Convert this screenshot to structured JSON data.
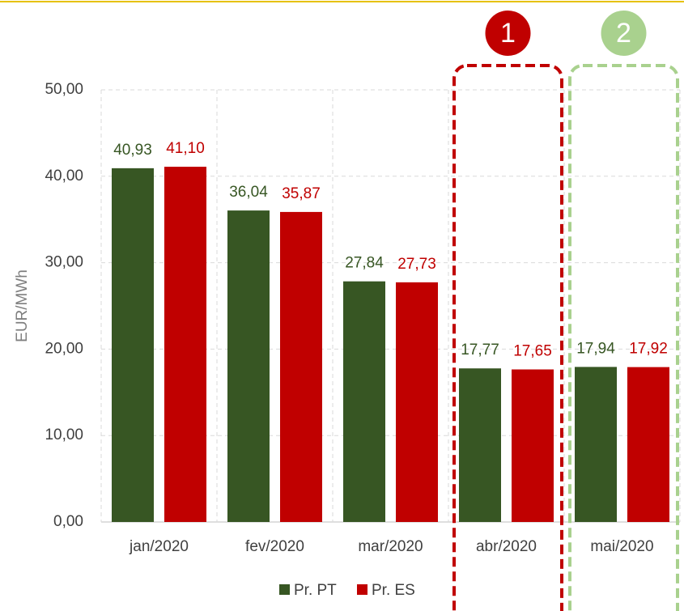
{
  "chart_data": {
    "type": "bar",
    "y_label": "EUR/MWh",
    "categories": [
      "jan/2020",
      "fev/2020",
      "mar/2020",
      "abr/2020",
      "mai/2020"
    ],
    "series": [
      {
        "name": "Pr. PT",
        "color": "#375623",
        "values": [
          40.93,
          36.04,
          27.84,
          17.77,
          17.94
        ],
        "value_labels": [
          "40,93",
          "36,04",
          "27,84",
          "17,77",
          "17,94"
        ]
      },
      {
        "name": "Pr. ES",
        "color": "#c00000",
        "values": [
          41.1,
          35.87,
          27.73,
          17.65,
          17.92
        ],
        "value_labels": [
          "41,10",
          "35,87",
          "27,73",
          "17,65",
          "17,92"
        ]
      }
    ],
    "ylim": [
      0,
      50
    ],
    "yticks": [
      {
        "value": 0,
        "label": "0,00"
      },
      {
        "value": 10,
        "label": "10,00"
      },
      {
        "value": 20,
        "label": "20,00"
      },
      {
        "value": 30,
        "label": "30,00"
      },
      {
        "value": 40,
        "label": "40,00"
      },
      {
        "value": 50,
        "label": "50,00"
      }
    ],
    "grid": true,
    "legend": "bottom",
    "annotations": [
      {
        "text": "1",
        "color": "#c00000",
        "category": 3
      },
      {
        "text": "2",
        "color": "#a9d18e",
        "category": 4
      }
    ]
  }
}
